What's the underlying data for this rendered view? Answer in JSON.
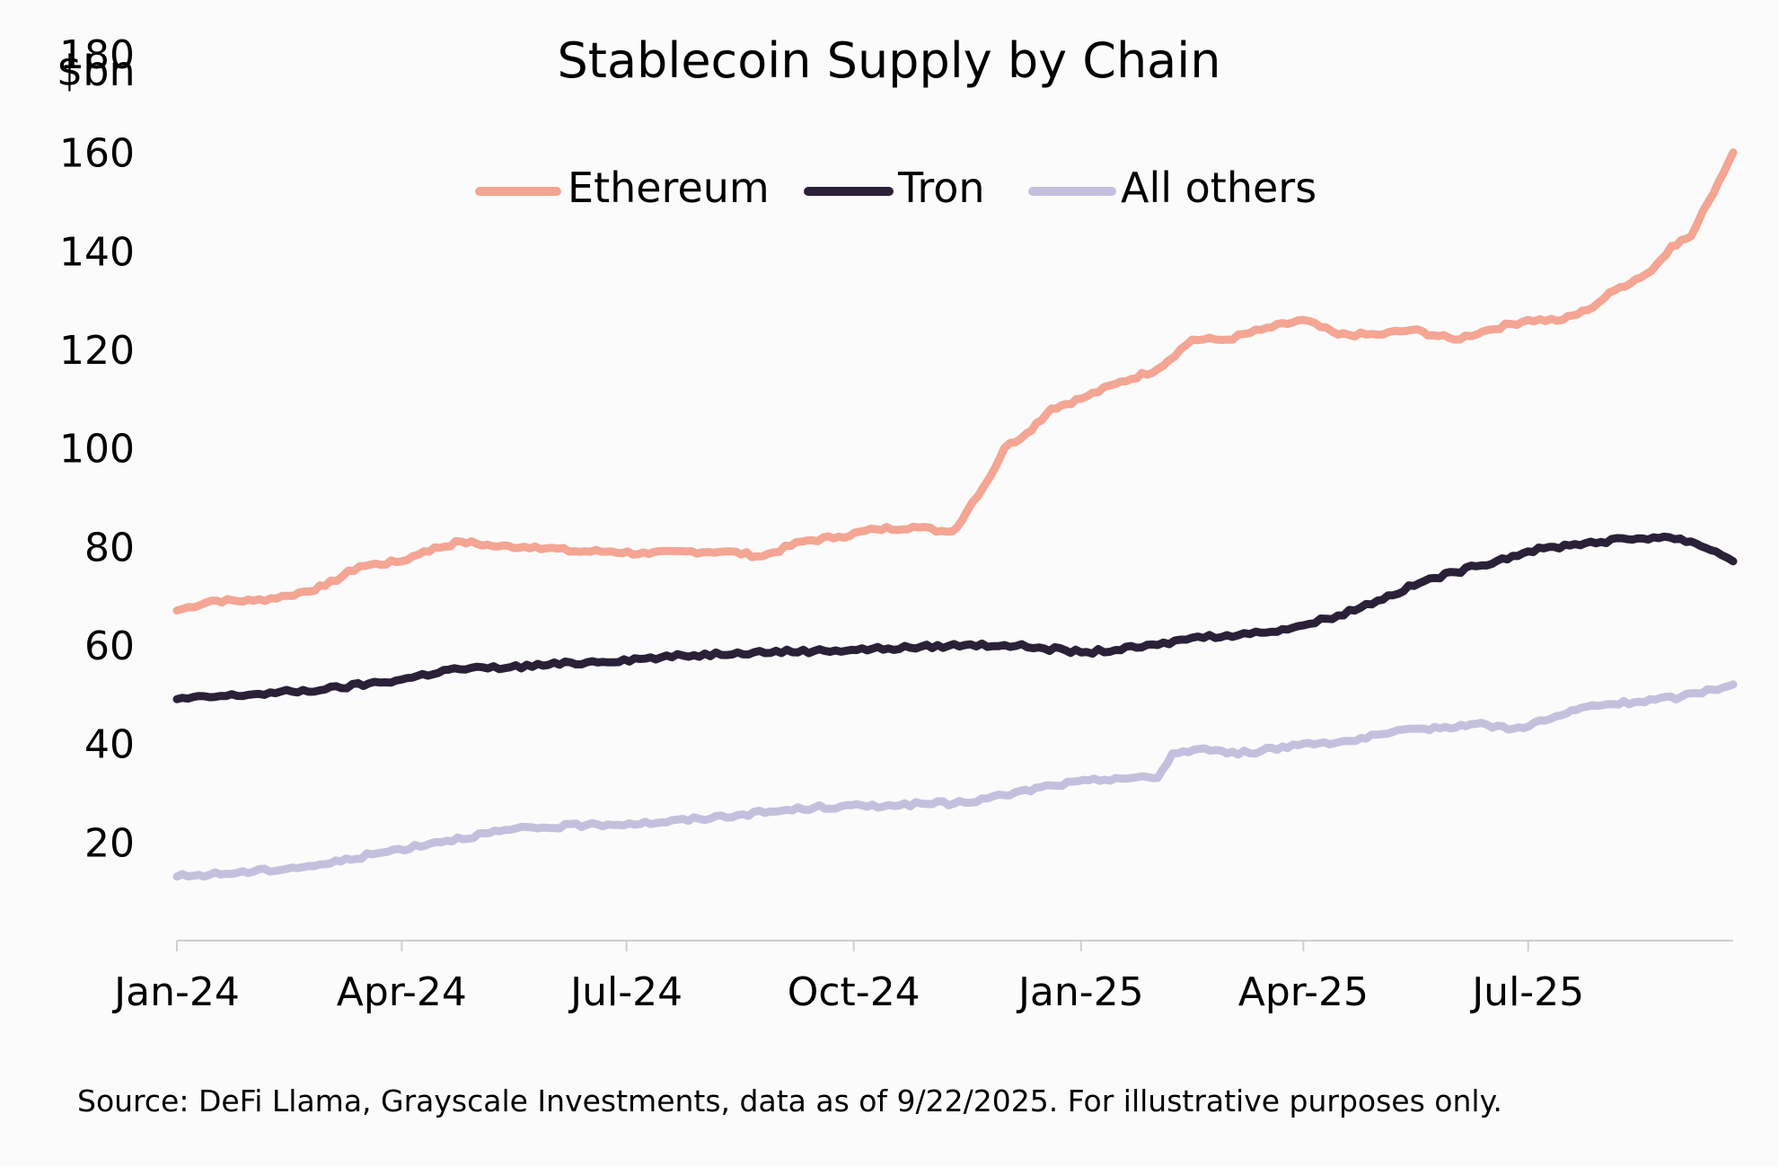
{
  "chart_data": {
    "type": "line",
    "title": "Stablecoin Supply by Chain",
    "ylabel": "$bn",
    "xlabel": "",
    "ylim": [
      0,
      180
    ],
    "xlim": [
      "2024-01-01",
      "2025-09-22"
    ],
    "y_ticks": [
      "20",
      "40",
      "60",
      "80",
      "100",
      "120",
      "140",
      "160",
      "180"
    ],
    "x_ticks": [
      {
        "label": "Jan-24",
        "date": "2024-01-01"
      },
      {
        "label": "Apr-24",
        "date": "2024-04-01"
      },
      {
        "label": "Jul-24",
        "date": "2024-07-01"
      },
      {
        "label": "Oct-24",
        "date": "2024-10-01"
      },
      {
        "label": "Jan-25",
        "date": "2025-01-01"
      },
      {
        "label": "Apr-25",
        "date": "2025-04-01"
      },
      {
        "label": "Jul-25",
        "date": "2025-07-01"
      }
    ],
    "grid": false,
    "legend": "top-center",
    "series": [
      {
        "name": "Ethereum",
        "color": "#f4a593",
        "points": [
          [
            "2024-01-01",
            67
          ],
          [
            "2024-01-15",
            69
          ],
          [
            "2024-02-01",
            69
          ],
          [
            "2024-02-15",
            70
          ],
          [
            "2024-03-01",
            72
          ],
          [
            "2024-03-15",
            76
          ],
          [
            "2024-04-01",
            77
          ],
          [
            "2024-04-10",
            79
          ],
          [
            "2024-04-25",
            81
          ],
          [
            "2024-05-10",
            80
          ],
          [
            "2024-05-25",
            80
          ],
          [
            "2024-06-10",
            79
          ],
          [
            "2024-06-25",
            79
          ],
          [
            "2024-07-10",
            78.5
          ],
          [
            "2024-07-25",
            79
          ],
          [
            "2024-08-10",
            79
          ],
          [
            "2024-08-25",
            78
          ],
          [
            "2024-09-10",
            81
          ],
          [
            "2024-09-25",
            82
          ],
          [
            "2024-10-10",
            83.5
          ],
          [
            "2024-10-25",
            84
          ],
          [
            "2024-11-08",
            83
          ],
          [
            "2024-11-12",
            84
          ],
          [
            "2024-11-18",
            89
          ],
          [
            "2024-11-25",
            94
          ],
          [
            "2024-12-01",
            100
          ],
          [
            "2024-12-10",
            103
          ],
          [
            "2024-12-20",
            108
          ],
          [
            "2025-01-01",
            110
          ],
          [
            "2025-01-15",
            113
          ],
          [
            "2025-02-01",
            116
          ],
          [
            "2025-02-15",
            122
          ],
          [
            "2025-03-01",
            122
          ],
          [
            "2025-03-15",
            124
          ],
          [
            "2025-04-01",
            126
          ],
          [
            "2025-04-15",
            123
          ],
          [
            "2025-05-01",
            123
          ],
          [
            "2025-05-15",
            124
          ],
          [
            "2025-06-01",
            122
          ],
          [
            "2025-06-15",
            124
          ],
          [
            "2025-07-01",
            126
          ],
          [
            "2025-07-15",
            126
          ],
          [
            "2025-07-25",
            128
          ],
          [
            "2025-08-05",
            132
          ],
          [
            "2025-08-20",
            136
          ],
          [
            "2025-08-28",
            141
          ],
          [
            "2025-09-05",
            143
          ],
          [
            "2025-09-12",
            150
          ],
          [
            "2025-09-22",
            160
          ]
        ]
      },
      {
        "name": "Tron",
        "color": "#2a2138",
        "points": [
          [
            "2024-01-01",
            49
          ],
          [
            "2024-02-01",
            50
          ],
          [
            "2024-03-01",
            51
          ],
          [
            "2024-04-01",
            53
          ],
          [
            "2024-04-20",
            55
          ],
          [
            "2024-05-15",
            55.5
          ],
          [
            "2024-06-15",
            56.5
          ],
          [
            "2024-07-15",
            57.5
          ],
          [
            "2024-08-15",
            58.5
          ],
          [
            "2024-09-15",
            58.8
          ],
          [
            "2024-10-15",
            59.3
          ],
          [
            "2024-11-15",
            60
          ],
          [
            "2024-12-01",
            60
          ],
          [
            "2024-12-15",
            59.5
          ],
          [
            "2025-01-01",
            58.5
          ],
          [
            "2025-01-15",
            59
          ],
          [
            "2025-02-01",
            60
          ],
          [
            "2025-02-15",
            61.5
          ],
          [
            "2025-03-01",
            62
          ],
          [
            "2025-03-15",
            62.5
          ],
          [
            "2025-04-01",
            64
          ],
          [
            "2025-04-15",
            66
          ],
          [
            "2025-05-01",
            69
          ],
          [
            "2025-05-20",
            73
          ],
          [
            "2025-06-10",
            76
          ],
          [
            "2025-07-01",
            79
          ],
          [
            "2025-07-20",
            80.5
          ],
          [
            "2025-08-10",
            81.5
          ],
          [
            "2025-08-25",
            82
          ],
          [
            "2025-09-05",
            81
          ],
          [
            "2025-09-15",
            79
          ],
          [
            "2025-09-22",
            77
          ]
        ]
      },
      {
        "name": "All others",
        "color": "#c3c0de",
        "points": [
          [
            "2024-01-01",
            13
          ],
          [
            "2024-02-01",
            14
          ],
          [
            "2024-03-01",
            15.5
          ],
          [
            "2024-03-20",
            17.5
          ],
          [
            "2024-04-15",
            20
          ],
          [
            "2024-05-15",
            22.5
          ],
          [
            "2024-06-15",
            23.5
          ],
          [
            "2024-07-15",
            24
          ],
          [
            "2024-08-15",
            25.5
          ],
          [
            "2024-09-15",
            27
          ],
          [
            "2024-10-15",
            27.5
          ],
          [
            "2024-11-15",
            28
          ],
          [
            "2024-12-01",
            29.5
          ],
          [
            "2024-12-20",
            31.5
          ],
          [
            "2025-01-15",
            33
          ],
          [
            "2025-02-01",
            33
          ],
          [
            "2025-02-07",
            38
          ],
          [
            "2025-02-20",
            39
          ],
          [
            "2025-03-01",
            38
          ],
          [
            "2025-03-15",
            38.5
          ],
          [
            "2025-04-01",
            40
          ],
          [
            "2025-04-20",
            40.5
          ],
          [
            "2025-05-05",
            42
          ],
          [
            "2025-05-20",
            43
          ],
          [
            "2025-06-10",
            44
          ],
          [
            "2025-06-25",
            43
          ],
          [
            "2025-07-10",
            45
          ],
          [
            "2025-07-25",
            47.5
          ],
          [
            "2025-08-15",
            48.5
          ],
          [
            "2025-09-01",
            49.5
          ],
          [
            "2025-09-22",
            52
          ]
        ]
      }
    ],
    "source": "Source: DeFi Llama, Grayscale Investments, data as of 9/22/2025. For illustrative purposes only."
  }
}
